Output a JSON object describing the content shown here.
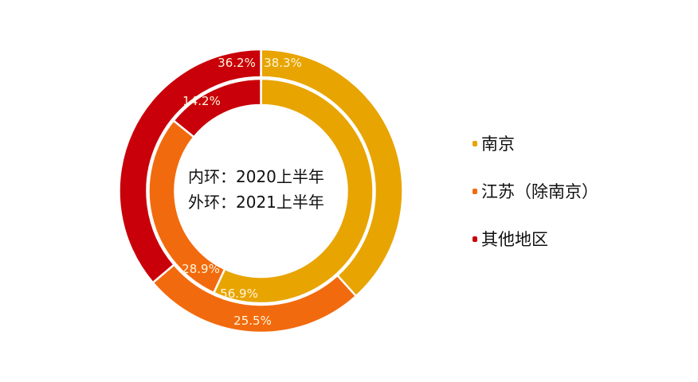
{
  "chart_data": {
    "type": "pie",
    "subtype": "nested-donut",
    "title": "",
    "categories": [
      "南京",
      "江苏（除南京）",
      "其他地区"
    ],
    "colors": [
      "#E8A400",
      "#F26A0E",
      "#C90009"
    ],
    "series": [
      {
        "name": "内环：2020上半年",
        "ring": "inner",
        "values": [
          56.9,
          28.9,
          14.2
        ],
        "labels": [
          "56.9%",
          "28.9%",
          "14.2%"
        ]
      },
      {
        "name": "外环：2021上半年",
        "ring": "outer",
        "values": [
          38.3,
          25.5,
          36.2
        ],
        "labels": [
          "38.3%",
          "25.5%",
          "36.2%"
        ]
      }
    ],
    "legend_position": "right",
    "start_angle_deg": 0,
    "direction": "clockwise"
  },
  "center": {
    "line1": "内环：2020上半年",
    "line2": "外环：2021上半年"
  },
  "legend": {
    "items": [
      {
        "label": "南京",
        "color": "#E8A400"
      },
      {
        "label": "江苏（除南京）",
        "color": "#F26A0E"
      },
      {
        "label": "其他地区",
        "color": "#C90009"
      }
    ]
  }
}
